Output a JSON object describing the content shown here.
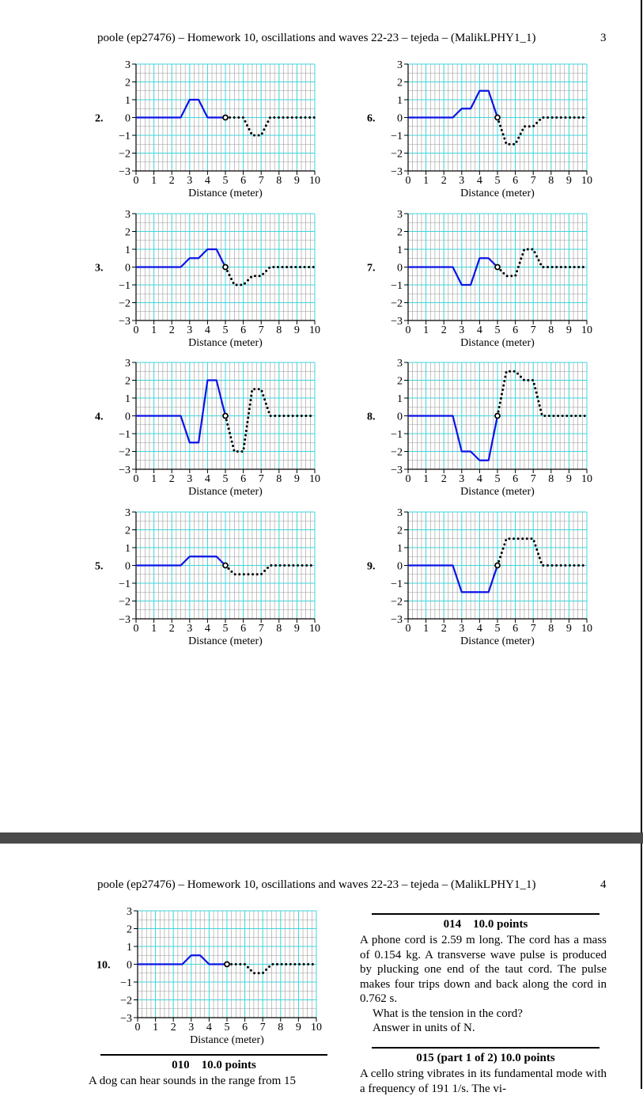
{
  "pages": [
    {
      "header": "poole (ep27476) – Homework 10, oscillations and waves 22-23 – tejeda – (MalikLPHY1_1)",
      "page_number": "3"
    },
    {
      "header": "poole (ep27476) – Homework 10, oscillations and waves 22-23 – tejeda – (MalikLPHY1_1)",
      "page_number": "4"
    }
  ],
  "chart_data": [
    {
      "type": "line",
      "label": "2.",
      "xlabel": "Distance (meter)",
      "xlim": [
        0,
        10
      ],
      "ylim": [
        -3,
        3
      ],
      "xticks": [
        0,
        1,
        2,
        3,
        4,
        5,
        6,
        7,
        8,
        9,
        10
      ],
      "yticks": [
        {
          "value": -3,
          "label": "−3"
        },
        {
          "value": -2,
          "label": "−2"
        },
        {
          "value": -1,
          "label": "−1"
        },
        0,
        1,
        2,
        3
      ],
      "series": [
        {
          "color": "#0a14e6",
          "style": "solid",
          "x": [
            0,
            2.5,
            3,
            3.5,
            4,
            5
          ],
          "values": [
            0,
            0,
            1,
            1,
            0,
            0
          ]
        },
        {
          "color": "#000000",
          "style": "dotted",
          "x": [
            5,
            6,
            6.5,
            7,
            7.5,
            10
          ],
          "values": [
            0,
            0,
            -1,
            -1,
            0,
            0
          ]
        }
      ]
    },
    {
      "type": "line",
      "label": "3.",
      "xlabel": "Distance (meter)",
      "xlim": [
        0,
        10
      ],
      "ylim": [
        -3,
        3
      ],
      "xticks": [
        0,
        1,
        2,
        3,
        4,
        5,
        6,
        7,
        8,
        9,
        10
      ],
      "yticks": [
        {
          "value": -3,
          "label": "−3"
        },
        {
          "value": -2,
          "label": "−2"
        },
        {
          "value": -1,
          "label": "−1"
        },
        0,
        1,
        2,
        3
      ],
      "series": [
        {
          "color": "#0a14e6",
          "style": "solid",
          "x": [
            0,
            2.5,
            3,
            3.5,
            4,
            4.5,
            5
          ],
          "values": [
            0,
            0,
            0.5,
            0.5,
            1,
            1,
            0
          ]
        },
        {
          "color": "#000000",
          "style": "dotted",
          "x": [
            5,
            5.5,
            6,
            6.5,
            7,
            7.5,
            10
          ],
          "values": [
            0,
            -1,
            -1,
            -0.5,
            -0.5,
            0,
            0
          ]
        }
      ]
    },
    {
      "type": "line",
      "label": "4.",
      "xlabel": "Distance (meter)",
      "xlim": [
        0,
        10
      ],
      "ylim": [
        -3,
        3
      ],
      "xticks": [
        0,
        1,
        2,
        3,
        4,
        5,
        6,
        7,
        8,
        9,
        10
      ],
      "yticks": [
        {
          "value": -3,
          "label": "−3"
        },
        {
          "value": -2,
          "label": "−2"
        },
        {
          "value": -1,
          "label": "−1"
        },
        0,
        1,
        2,
        3
      ],
      "series": [
        {
          "color": "#0a14e6",
          "style": "solid",
          "x": [
            0,
            2.5,
            3,
            3.5,
            4,
            4.5,
            5
          ],
          "values": [
            0,
            0,
            -1.5,
            -1.5,
            2,
            2,
            0
          ]
        },
        {
          "color": "#000000",
          "style": "dotted",
          "x": [
            5,
            5.5,
            6,
            6.5,
            7,
            7.5,
            10
          ],
          "values": [
            0,
            -2,
            -2,
            1.5,
            1.5,
            0,
            0
          ]
        }
      ]
    },
    {
      "type": "line",
      "label": "5.",
      "xlabel": "Distance (meter)",
      "xlim": [
        0,
        10
      ],
      "ylim": [
        -3,
        3
      ],
      "xticks": [
        0,
        1,
        2,
        3,
        4,
        5,
        6,
        7,
        8,
        9,
        10
      ],
      "yticks": [
        {
          "value": -3,
          "label": "−3"
        },
        {
          "value": -2,
          "label": "−2"
        },
        {
          "value": -1,
          "label": "−1"
        },
        0,
        1,
        2,
        3
      ],
      "series": [
        {
          "color": "#0a14e6",
          "style": "solid",
          "x": [
            0,
            2.5,
            3,
            4.5,
            5
          ],
          "values": [
            0,
            0,
            0.5,
            0.5,
            0
          ]
        },
        {
          "color": "#000000",
          "style": "dotted",
          "x": [
            5,
            5.5,
            7,
            7.5,
            10
          ],
          "values": [
            0,
            -0.5,
            -0.5,
            0,
            0
          ]
        }
      ]
    },
    {
      "type": "line",
      "label": "6.",
      "xlabel": "Distance (meter)",
      "xlim": [
        0,
        10
      ],
      "ylim": [
        -3,
        3
      ],
      "xticks": [
        0,
        1,
        2,
        3,
        4,
        5,
        6,
        7,
        8,
        9,
        10
      ],
      "yticks": [
        {
          "value": -3,
          "label": "−3"
        },
        {
          "value": -2,
          "label": "−2"
        },
        {
          "value": -1,
          "label": "−1"
        },
        0,
        1,
        2,
        3
      ],
      "series": [
        {
          "color": "#0a14e6",
          "style": "solid",
          "x": [
            0,
            2.5,
            3,
            3.5,
            4,
            4.5,
            5
          ],
          "values": [
            0,
            0,
            0.5,
            0.5,
            1.5,
            1.5,
            0
          ]
        },
        {
          "color": "#000000",
          "style": "dotted",
          "x": [
            5,
            5.5,
            6,
            6.5,
            7,
            7.5,
            10
          ],
          "values": [
            0,
            -1.5,
            -1.5,
            -0.5,
            -0.5,
            0,
            0
          ]
        }
      ]
    },
    {
      "type": "line",
      "label": "7.",
      "xlabel": "Distance (meter)",
      "xlim": [
        0,
        10
      ],
      "ylim": [
        -3,
        3
      ],
      "xticks": [
        0,
        1,
        2,
        3,
        4,
        5,
        6,
        7,
        8,
        9,
        10
      ],
      "yticks": [
        {
          "value": -3,
          "label": "−3"
        },
        {
          "value": -2,
          "label": "−2"
        },
        {
          "value": -1,
          "label": "−1"
        },
        0,
        1,
        2,
        3
      ],
      "series": [
        {
          "color": "#0a14e6",
          "style": "solid",
          "x": [
            0,
            2.5,
            3,
            3.5,
            4,
            4.5,
            5
          ],
          "values": [
            0,
            0,
            -1,
            -1,
            0.5,
            0.5,
            0
          ]
        },
        {
          "color": "#000000",
          "style": "dotted",
          "x": [
            5,
            5.5,
            6,
            6.5,
            7,
            7.5,
            10
          ],
          "values": [
            0,
            -0.5,
            -0.5,
            1,
            1,
            0,
            0
          ]
        }
      ]
    },
    {
      "type": "line",
      "label": "8.",
      "xlabel": "Distance (meter)",
      "xlim": [
        0,
        10
      ],
      "ylim": [
        -3,
        3
      ],
      "xticks": [
        0,
        1,
        2,
        3,
        4,
        5,
        6,
        7,
        8,
        9,
        10
      ],
      "yticks": [
        {
          "value": -3,
          "label": "−3"
        },
        {
          "value": -2,
          "label": "−2"
        },
        {
          "value": -1,
          "label": "−1"
        },
        0,
        1,
        2,
        3
      ],
      "series": [
        {
          "color": "#0a14e6",
          "style": "solid",
          "x": [
            0,
            2.5,
            3,
            3.5,
            4,
            4.5,
            5
          ],
          "values": [
            0,
            0,
            -2,
            -2,
            -2.5,
            -2.5,
            0
          ]
        },
        {
          "color": "#000000",
          "style": "dotted",
          "x": [
            5,
            5.5,
            6,
            6.5,
            7,
            7.5,
            10
          ],
          "values": [
            0,
            2.5,
            2.5,
            2,
            2,
            0,
            0
          ]
        }
      ]
    },
    {
      "type": "line",
      "label": "9.",
      "xlabel": "Distance (meter)",
      "xlim": [
        0,
        10
      ],
      "ylim": [
        -3,
        3
      ],
      "xticks": [
        0,
        1,
        2,
        3,
        4,
        5,
        6,
        7,
        8,
        9,
        10
      ],
      "yticks": [
        {
          "value": -3,
          "label": "−3"
        },
        {
          "value": -2,
          "label": "−2"
        },
        {
          "value": -1,
          "label": "−1"
        },
        0,
        1,
        2,
        3
      ],
      "series": [
        {
          "color": "#0a14e6",
          "style": "solid",
          "x": [
            0,
            2.5,
            3,
            4.5,
            5
          ],
          "values": [
            0,
            0,
            -1.5,
            -1.5,
            0
          ]
        },
        {
          "color": "#000000",
          "style": "dotted",
          "x": [
            5,
            5.5,
            7,
            7.5,
            10
          ],
          "values": [
            0,
            1.5,
            1.5,
            0,
            0
          ]
        }
      ]
    },
    {
      "type": "line",
      "label": "10.",
      "xlabel": "Distance (meter)",
      "xlim": [
        0,
        10
      ],
      "ylim": [
        -3,
        3
      ],
      "xticks": [
        0,
        1,
        2,
        3,
        4,
        5,
        6,
        7,
        8,
        9,
        10
      ],
      "yticks": [
        {
          "value": -3,
          "label": "−3"
        },
        {
          "value": -2,
          "label": "−2"
        },
        {
          "value": -1,
          "label": "−1"
        },
        0,
        1,
        2,
        3
      ],
      "series": [
        {
          "color": "#0a14e6",
          "style": "solid",
          "x": [
            0,
            2.5,
            3,
            3.5,
            4,
            5
          ],
          "values": [
            0,
            0,
            0.5,
            0.5,
            0,
            0
          ]
        },
        {
          "color": "#000000",
          "style": "dotted",
          "x": [
            5,
            6,
            6.5,
            7,
            7.5,
            10
          ],
          "values": [
            0,
            0,
            -0.5,
            -0.5,
            0,
            0
          ]
        }
      ]
    }
  ],
  "problems": [
    {
      "number": "014",
      "points": "10.0 points",
      "paragraphs": [
        "A phone cord is 2.59 m long. The cord has a mass of 0.154 kg. A transverse wave pulse is produced by plucking one end of the taut cord. The pulse makes four trips down and back along the cord in 0.762 s.",
        "What is the tension in the cord?",
        "Answer in units of N."
      ]
    },
    {
      "number": "010",
      "points": "10.0 points",
      "paragraphs": [
        "A dog can hear sounds in the range from 15"
      ]
    },
    {
      "number": "015 (part 1 of 2)",
      "points": "10.0 points",
      "paragraphs": [
        "A cello string vibrates in its fundamental mode with a frequency of 191 1/s. The vi-"
      ]
    }
  ]
}
